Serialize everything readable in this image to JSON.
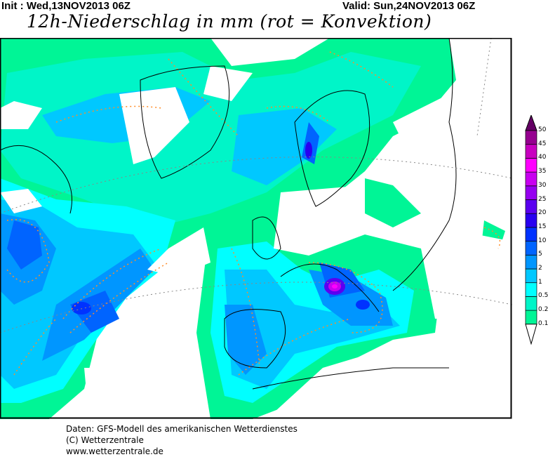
{
  "header": {
    "init": "Init : Wed,13NOV2013 06Z",
    "valid": "Valid: Sun,24NOV2013 06Z",
    "title": "12h-Niederschlag in mm (rot = Konvektion)"
  },
  "legend": {
    "unit": "mm",
    "levels": [
      "0.1",
      "0.2",
      "0.5",
      "1",
      "2",
      "5",
      "10",
      "15",
      "20",
      "25",
      "30",
      "35",
      "40",
      "45",
      "50"
    ],
    "colors": [
      "#00f596",
      "#00f5c8",
      "#00ffff",
      "#00c8ff",
      "#0096ff",
      "#0064ff",
      "#0032ff",
      "#2800f0",
      "#5a00f0",
      "#9600f0",
      "#c800f0",
      "#ff00ff",
      "#c800c0",
      "#960090",
      "#640064"
    ]
  },
  "map": {
    "region": "North Atlantic / Europe",
    "convection_contour_color": "#ff8c28",
    "coastline_color": "#000000"
  },
  "footer": {
    "line1": "Daten: GFS-Modell des amerikanischen Wetterdienstes",
    "line2": "(C) Wetterzentrale",
    "line3": "www.wetterzentrale.de"
  }
}
